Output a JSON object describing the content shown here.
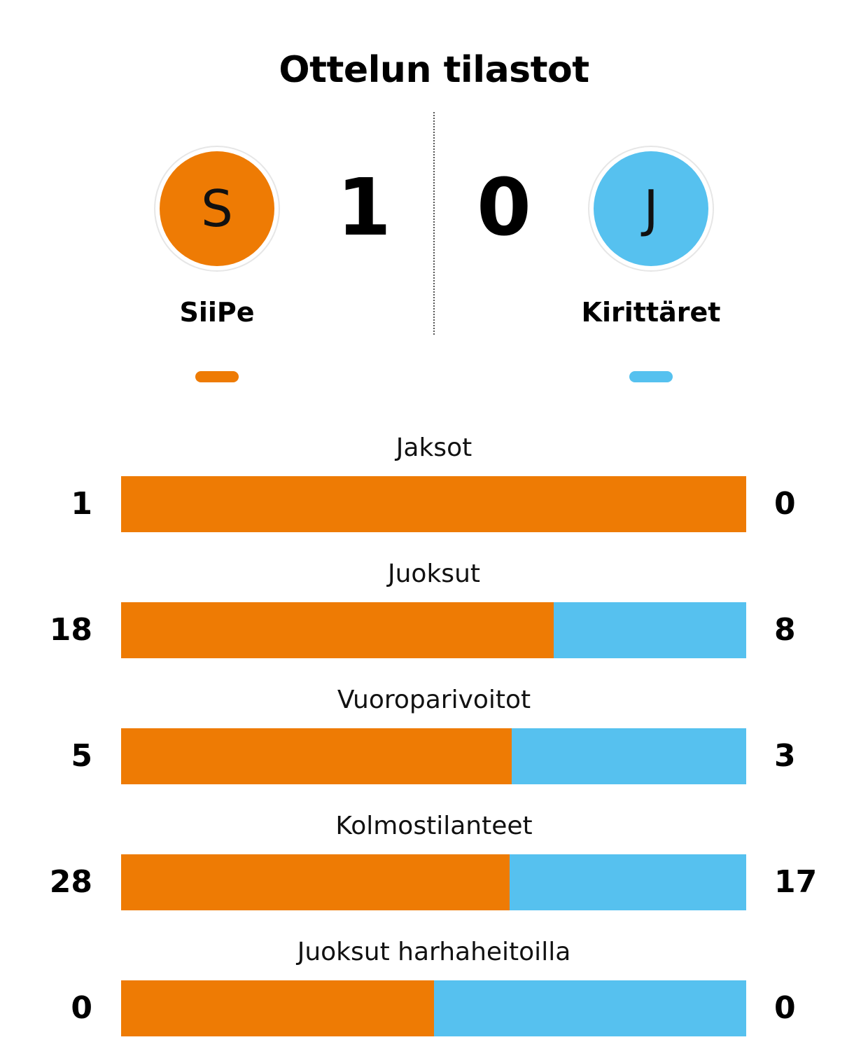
{
  "title": "Ottelun tilastot",
  "colors": {
    "home": "#ee7b04",
    "away": "#56c1ef"
  },
  "home": {
    "initial": "S",
    "name": "SiiPe",
    "score": "1"
  },
  "away": {
    "initial": "J",
    "name": "Kirittäret",
    "score": "0"
  },
  "stats": [
    {
      "label": "Jaksot",
      "home": 1,
      "away": 0,
      "home_share": 1.0
    },
    {
      "label": "Juoksut",
      "home": 18,
      "away": 8,
      "home_share": 0.692
    },
    {
      "label": "Vuoroparivoitot",
      "home": 5,
      "away": 3,
      "home_share": 0.625
    },
    {
      "label": "Kolmostilanteet",
      "home": 28,
      "away": 17,
      "home_share": 0.622
    },
    {
      "label": "Juoksut harhaheitoilla",
      "home": 0,
      "away": 0,
      "home_share": 0.5
    }
  ]
}
